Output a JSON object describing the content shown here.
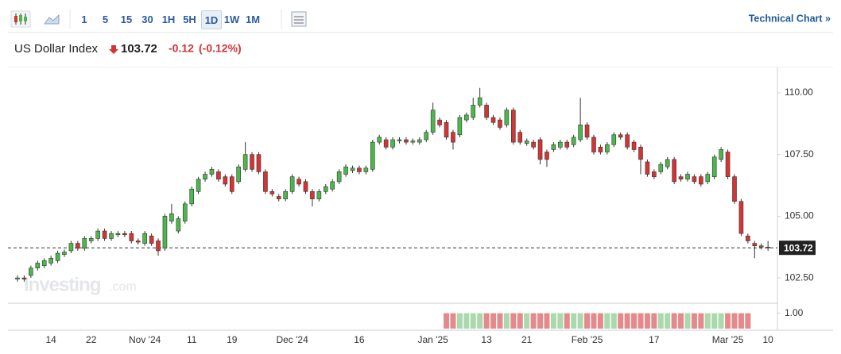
{
  "toolbar": {
    "intervals": [
      "1",
      "5",
      "15",
      "30",
      "1H",
      "5H",
      "1D",
      "1W",
      "1M"
    ],
    "selected": 6,
    "link": "Technical Chart »"
  },
  "header": {
    "title": "US Dollar Index",
    "change": -0.12,
    "change_percent": "(-0.12%)"
  },
  "chart_data": {
    "type": "candlestick",
    "watermark": [
      "Investing",
      ".com"
    ],
    "last_price": 103.72,
    "categories": [
      null,
      null,
      null,
      null,
      null,
      "14",
      null,
      null,
      null,
      null,
      null,
      "22",
      null,
      null,
      null,
      null,
      null,
      null,
      null,
      "Nov '24",
      null,
      null,
      null,
      null,
      null,
      null,
      "11",
      null,
      null,
      null,
      null,
      null,
      "19",
      null,
      null,
      null,
      null,
      null,
      null,
      null,
      null,
      "Dec '24",
      null,
      null,
      null,
      null,
      null,
      null,
      null,
      null,
      null,
      "16",
      null,
      null,
      null,
      null,
      null,
      null,
      null,
      null,
      null,
      null,
      "Jan '25",
      null,
      null,
      null,
      null,
      null,
      null,
      null,
      "13",
      null,
      null,
      null,
      null,
      null,
      "21",
      null,
      null,
      null,
      null,
      null,
      null,
      null,
      null,
      "Feb '25",
      null,
      null,
      null,
      null,
      null,
      null,
      null,
      null,
      null,
      "17",
      null,
      null,
      null,
      null,
      null,
      null,
      null,
      null,
      null,
      null,
      "Mar '25",
      null,
      null,
      null,
      null,
      null,
      "10"
    ],
    "open": [
      102.45,
      102.5,
      102.6,
      102.9,
      103.0,
      103.1,
      103.2,
      103.45,
      103.6,
      103.9,
      103.7,
      104.0,
      104.1,
      104.4,
      104.1,
      104.25,
      104.3,
      104.3,
      104.0,
      103.9,
      104.2,
      104.0,
      103.7,
      104.8,
      104.4,
      104.8,
      105.5,
      106.0,
      106.5,
      106.7,
      106.8,
      106.6,
      106.6,
      106.4,
      106.9,
      107.5,
      107.5,
      106.8,
      106.0,
      105.8,
      105.7,
      106.0,
      106.5,
      106.4,
      106.0,
      105.7,
      106.0,
      106.1,
      106.4,
      106.7,
      106.85,
      106.95,
      106.8,
      106.9,
      108.0,
      108.1,
      107.8,
      108.05,
      108.1,
      108.0,
      108.0,
      108.1,
      108.4,
      108.9,
      108.8,
      108.4,
      108.3,
      108.9,
      109.0,
      109.5,
      109.5,
      109.0,
      108.9,
      108.7,
      109.3,
      108.4,
      107.95,
      108.0,
      108.1,
      107.6,
      107.7,
      107.8,
      108.0,
      107.9,
      108.1,
      108.7,
      108.2,
      107.8,
      107.6,
      107.9,
      108.3,
      108.3,
      108.0,
      107.8,
      107.2,
      106.8,
      106.8,
      107.0,
      107.3,
      106.6,
      106.5,
      106.6,
      106.6,
      106.4,
      106.6,
      107.3,
      107.6,
      106.6,
      105.6,
      104.2,
      103.9,
      103.8,
      103.75
    ],
    "high": [
      102.6,
      102.6,
      103.0,
      103.2,
      103.3,
      103.4,
      103.6,
      103.65,
      104.0,
      104.0,
      104.2,
      104.2,
      104.5,
      104.5,
      104.4,
      104.4,
      104.4,
      104.4,
      104.1,
      104.4,
      104.3,
      104.1,
      105.1,
      105.5,
      105.0,
      105.6,
      106.2,
      106.6,
      106.8,
      107.0,
      106.9,
      106.7,
      106.7,
      107.1,
      108.0,
      107.6,
      107.6,
      106.9,
      106.1,
      105.9,
      106.1,
      106.7,
      106.6,
      106.5,
      106.1,
      106.1,
      106.3,
      106.5,
      106.9,
      107.1,
      107.05,
      107.05,
      107.05,
      108.1,
      108.3,
      108.2,
      108.2,
      108.2,
      108.2,
      108.15,
      108.2,
      108.5,
      109.6,
      109.0,
      108.9,
      108.5,
      109.1,
      109.2,
      109.8,
      110.2,
      109.6,
      109.1,
      109.0,
      109.4,
      109.4,
      108.5,
      108.15,
      108.1,
      108.2,
      107.7,
      108.0,
      108.1,
      108.1,
      108.3,
      109.8,
      108.8,
      108.3,
      107.9,
      108.0,
      108.4,
      108.4,
      108.4,
      108.1,
      107.9,
      107.3,
      106.9,
      107.2,
      107.4,
      107.4,
      106.7,
      106.8,
      106.7,
      106.7,
      106.8,
      107.5,
      107.8,
      107.7,
      106.7,
      105.7,
      104.3,
      104.0,
      103.9,
      104.0
    ],
    "low": [
      102.35,
      102.35,
      102.5,
      102.8,
      102.9,
      103.0,
      103.1,
      103.35,
      103.5,
      103.6,
      103.6,
      103.9,
      104.0,
      104.0,
      104.0,
      104.15,
      104.15,
      103.9,
      103.85,
      103.8,
      103.8,
      103.4,
      103.6,
      104.7,
      104.3,
      104.7,
      105.4,
      105.9,
      106.4,
      106.6,
      106.4,
      106.2,
      105.9,
      106.3,
      106.8,
      106.8,
      106.7,
      105.9,
      105.8,
      105.6,
      105.6,
      105.9,
      106.2,
      105.9,
      105.4,
      105.6,
      105.9,
      106.0,
      106.3,
      106.6,
      106.75,
      106.7,
      106.7,
      106.8,
      107.9,
      107.7,
      107.7,
      107.95,
      107.9,
      107.9,
      107.9,
      108.0,
      108.3,
      108.6,
      108.1,
      107.7,
      108.2,
      108.8,
      108.9,
      109.4,
      108.9,
      108.7,
      108.5,
      108.6,
      107.9,
      107.9,
      107.85,
      107.7,
      107.1,
      107.0,
      107.6,
      107.7,
      107.7,
      107.8,
      108.0,
      108.1,
      107.5,
      107.5,
      107.5,
      107.8,
      108.1,
      107.7,
      107.6,
      106.7,
      106.6,
      106.5,
      106.7,
      106.9,
      106.3,
      106.4,
      106.4,
      106.3,
      106.2,
      106.3,
      106.5,
      107.2,
      106.5,
      105.5,
      104.2,
      103.9,
      103.3,
      103.65,
      103.6
    ],
    "close": [
      102.5,
      102.45,
      102.9,
      103.1,
      103.2,
      103.3,
      103.5,
      103.55,
      103.9,
      103.7,
      104.1,
      104.1,
      104.4,
      104.1,
      104.3,
      104.3,
      104.25,
      104.0,
      103.95,
      104.3,
      103.9,
      103.6,
      105.0,
      105.1,
      104.9,
      105.5,
      106.1,
      106.5,
      106.7,
      106.9,
      106.5,
      106.3,
      106.0,
      107.0,
      107.5,
      106.9,
      106.8,
      106.0,
      105.9,
      105.7,
      106.0,
      106.6,
      106.3,
      106.0,
      105.7,
      106.0,
      106.2,
      106.4,
      106.8,
      107.0,
      106.95,
      106.8,
      106.95,
      108.0,
      108.2,
      107.8,
      108.1,
      108.1,
      108.0,
      108.05,
      108.1,
      108.4,
      109.3,
      108.7,
      108.2,
      108.0,
      109.0,
      109.1,
      109.5,
      109.8,
      109.0,
      108.8,
      108.6,
      109.3,
      108.0,
      108.0,
      108.05,
      107.8,
      107.3,
      107.3,
      107.9,
      108.0,
      107.8,
      108.2,
      108.7,
      108.2,
      107.6,
      107.6,
      107.9,
      108.3,
      108.2,
      107.8,
      107.7,
      107.3,
      106.7,
      106.6,
      107.1,
      107.3,
      106.4,
      106.5,
      106.7,
      106.4,
      106.3,
      106.7,
      107.4,
      107.7,
      106.6,
      105.6,
      104.3,
      104.0,
      103.8,
      103.75,
      103.72
    ],
    "volume": [
      null,
      null,
      null,
      null,
      null,
      null,
      null,
      null,
      null,
      null,
      null,
      null,
      null,
      null,
      null,
      null,
      null,
      null,
      null,
      null,
      null,
      null,
      null,
      null,
      null,
      null,
      null,
      null,
      null,
      null,
      null,
      null,
      null,
      null,
      null,
      null,
      null,
      null,
      null,
      null,
      null,
      null,
      null,
      null,
      null,
      null,
      null,
      null,
      null,
      null,
      null,
      null,
      null,
      null,
      null,
      null,
      null,
      null,
      null,
      null,
      null,
      null,
      null,
      null,
      1,
      1,
      1,
      1,
      1,
      1,
      1,
      1,
      1,
      1,
      1,
      1,
      1,
      1,
      1,
      1,
      1,
      1,
      1,
      1,
      1,
      1,
      1,
      1,
      1,
      1,
      1,
      1,
      1,
      1,
      1,
      1,
      1,
      1,
      1,
      1,
      1,
      1,
      1,
      1,
      1,
      1,
      1,
      1,
      1,
      1,
      null,
      null,
      null
    ],
    "ylim": [
      101.54,
      110.93
    ],
    "yticks": [
      {
        "value": 102.5,
        "label": "102.50"
      },
      {
        "value": 105,
        "label": "105.00"
      },
      {
        "value": 107.5,
        "label": "107.50"
      },
      {
        "value": 110,
        "label": "110.00"
      }
    ],
    "volume_ylim": [
      0,
      1.6
    ],
    "volume_ticks": [
      {
        "value": 1,
        "label": "1.00"
      }
    ],
    "grid": false,
    "up_color": "#4cb84c",
    "down_color": "#d63434",
    "volume_up_color": "#a9d9ad",
    "volume_down_color": "#e58a8c"
  }
}
